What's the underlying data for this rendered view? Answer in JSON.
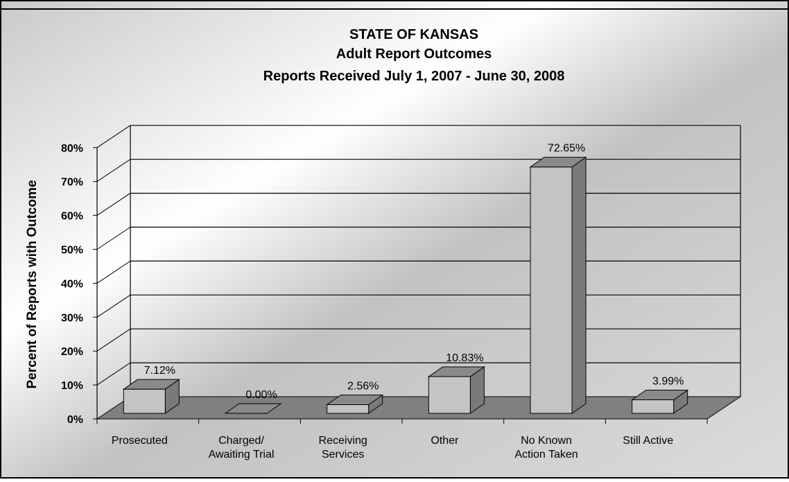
{
  "chart_data": {
    "type": "bar",
    "title": [
      "STATE OF KANSAS",
      "Adult Report Outcomes",
      "Reports Received July 1, 2007 - June 30, 2008"
    ],
    "ylabel": "Percent of Reports with Outcome",
    "xlabel": "",
    "categories": [
      [
        "Prosecuted"
      ],
      [
        "Charged/",
        "Awaiting Trial"
      ],
      [
        "Receiving",
        "Services"
      ],
      [
        "Other"
      ],
      [
        "No Known",
        "Action Taken"
      ],
      [
        "Still Active"
      ]
    ],
    "values": [
      7.12,
      0.0,
      2.56,
      10.83,
      72.65,
      3.99
    ],
    "data_labels": [
      "7.12%",
      "0.00%",
      "2.56%",
      "10.83%",
      "72.65%",
      "3.99%"
    ],
    "ylim": [
      0,
      80
    ],
    "yticks": [
      "0%",
      "10%",
      "20%",
      "30%",
      "40%",
      "50%",
      "60%",
      "70%",
      "80%"
    ],
    "grid": true,
    "three_d": true,
    "legend": "none",
    "colors": {
      "bar_front": "#c4c4c4",
      "bar_top": "#8a8a8a",
      "bar_side": "#7a7a7a",
      "floor": "#808080"
    }
  }
}
